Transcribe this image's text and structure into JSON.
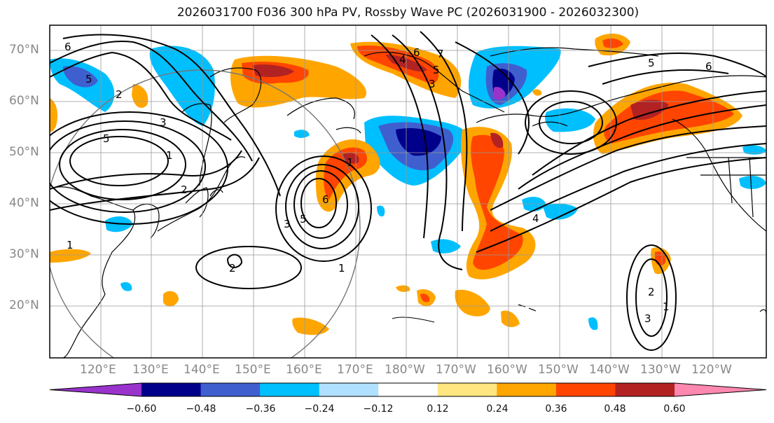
{
  "title": "2026031700 F036 300 hPa PV, Rossby Wave PC (2026031900 - 2026032300)",
  "axes": {
    "lat_labels": [
      "70°N",
      "60°N",
      "50°N",
      "40°N",
      "30°N",
      "20°N"
    ],
    "lon_labels": [
      "120°E",
      "130°E",
      "140°E",
      "150°E",
      "160°E",
      "170°E",
      "180°W",
      "170°W",
      "160°W",
      "150°W",
      "140°W",
      "130°W",
      "120°W"
    ]
  },
  "colorbar": {
    "ticks": [
      "−0.60",
      "−0.48",
      "−0.36",
      "−0.24",
      "−0.12",
      "0.12",
      "0.24",
      "0.36",
      "0.48",
      "0.60"
    ],
    "colors": [
      "#9933cc",
      "#00008b",
      "#3f5fcf",
      "#00bfff",
      "#b0e0ff",
      "#ffffff",
      "#ffe680",
      "#ffa500",
      "#ff4500",
      "#b22222",
      "#ff88b0"
    ]
  },
  "contour_labels": [
    "5",
    "6",
    "5",
    "2",
    "3",
    "1",
    "6",
    "2",
    "1",
    "6",
    "5",
    "3",
    "1",
    "2",
    "1",
    "4",
    "5",
    "3",
    "7",
    "5",
    "6",
    "4",
    "1",
    "2",
    "3"
  ]
}
